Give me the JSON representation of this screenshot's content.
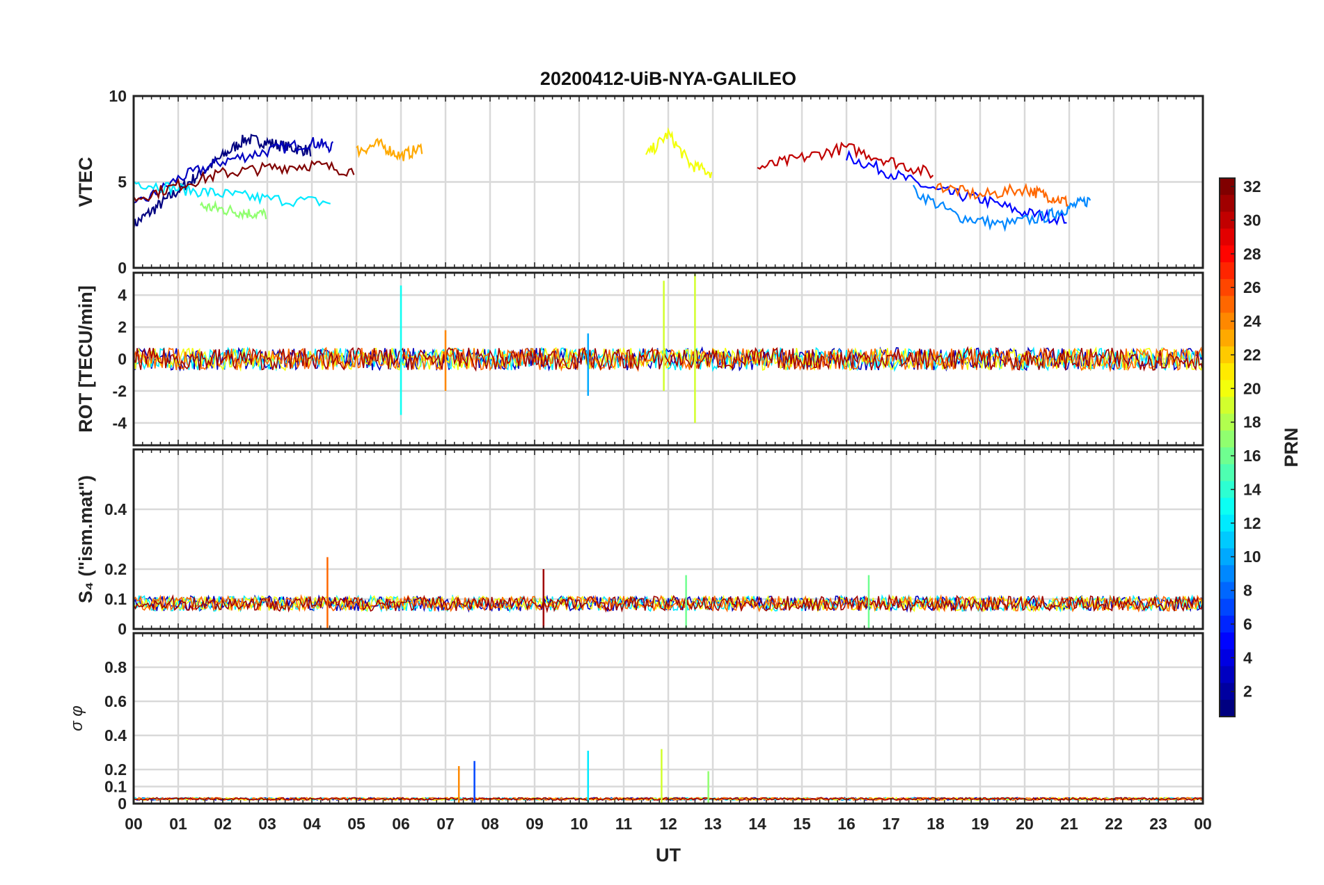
{
  "figure": {
    "title": "20200412-UiB-NYA-GALILEO",
    "xlabel": "UT",
    "x_ticks": [
      "00",
      "01",
      "02",
      "03",
      "04",
      "05",
      "06",
      "07",
      "08",
      "09",
      "10",
      "11",
      "12",
      "13",
      "14",
      "15",
      "16",
      "17",
      "18",
      "19",
      "20",
      "21",
      "22",
      "23",
      "00"
    ]
  },
  "chart_data": [
    {
      "type": "line",
      "panel": "vtec",
      "ylabel": "VTEC",
      "ylim": [
        0,
        10
      ],
      "y_ticks": [
        "0",
        "5",
        "10"
      ],
      "grid": true,
      "series": [
        {
          "prn": 1,
          "x": [
            0,
            0.5,
            1,
            1.5,
            2,
            2.5,
            3,
            3.5,
            4
          ],
          "y": [
            2.5,
            3.5,
            4.5,
            5.5,
            6.5,
            7.5,
            7.3,
            7.0,
            6.8
          ]
        },
        {
          "prn": 3,
          "x": [
            0,
            1,
            2,
            3,
            4,
            4.5
          ],
          "y": [
            3.5,
            5.2,
            6.2,
            6.8,
            7.3,
            7.0
          ]
        },
        {
          "prn": 5,
          "x": [
            16,
            17,
            18,
            19,
            20,
            21
          ],
          "y": [
            6.5,
            5.5,
            4.5,
            4.0,
            3.2,
            2.8
          ]
        },
        {
          "prn": 9,
          "x": [
            17.5,
            18.5,
            19.5,
            20.5,
            21,
            21.5
          ],
          "y": [
            4.5,
            3.0,
            2.5,
            3.0,
            3.5,
            4.0
          ]
        },
        {
          "prn": 12,
          "x": [
            0,
            1,
            2,
            3,
            4.5
          ],
          "y": [
            5.0,
            4.6,
            4.3,
            4.0,
            3.8
          ]
        },
        {
          "prn": 17,
          "x": [
            1.5,
            2,
            2.5,
            3
          ],
          "y": [
            3.6,
            3.4,
            3.2,
            3.1
          ]
        },
        {
          "prn": 20,
          "x": [
            11.5,
            12,
            12.5,
            13
          ],
          "y": [
            6.5,
            7.8,
            6.0,
            5.5
          ]
        },
        {
          "prn": 23,
          "x": [
            5,
            5.5,
            6,
            6.5
          ],
          "y": [
            6.8,
            7.2,
            6.5,
            7.0
          ]
        },
        {
          "prn": 25,
          "x": [
            18,
            19,
            20,
            20.5,
            21
          ],
          "y": [
            4.8,
            4.2,
            4.6,
            4.2,
            3.8
          ]
        },
        {
          "prn": 30,
          "x": [
            14,
            15,
            16,
            17,
            18
          ],
          "y": [
            5.8,
            6.4,
            7.0,
            6.2,
            5.4
          ]
        },
        {
          "prn": 32,
          "x": [
            0,
            1,
            2,
            3,
            4,
            5
          ],
          "y": [
            4.0,
            4.8,
            5.5,
            5.8,
            6.0,
            5.6
          ]
        }
      ]
    },
    {
      "type": "line",
      "panel": "rot",
      "ylabel": "ROT [TECU/min]",
      "ylim": [
        -5.4,
        5.4
      ],
      "y_ticks": [
        "-4",
        "-2",
        "0",
        "2",
        "4"
      ],
      "grid": true,
      "spikes": [
        {
          "prn": 13,
          "x": 6.0,
          "min": -3.5,
          "max": 4.6
        },
        {
          "prn": 19,
          "x": 11.9,
          "min": -2.0,
          "max": 4.9
        },
        {
          "prn": 19,
          "x": 12.6,
          "min": -4.0,
          "max": 5.4
        },
        {
          "prn": 24,
          "x": 7.0,
          "min": -2.0,
          "max": 1.8
        },
        {
          "prn": 10,
          "x": 10.2,
          "min": -2.3,
          "max": 1.6
        }
      ]
    },
    {
      "type": "line",
      "panel": "s4",
      "ylabel": "S₄ (\"ism.mat\")",
      "ylim": [
        0,
        0.6
      ],
      "y_ticks": [
        "0",
        "0.1",
        "0.2",
        "0.4"
      ],
      "grid": true,
      "spikes": [
        {
          "prn": 25,
          "x": 4.35,
          "max": 0.24
        },
        {
          "prn": 31,
          "x": 9.2,
          "max": 0.2
        },
        {
          "prn": 16,
          "x": 12.4,
          "max": 0.18
        },
        {
          "prn": 16,
          "x": 16.5,
          "max": 0.18
        }
      ]
    },
    {
      "type": "line",
      "panel": "sigma_phi",
      "ylabel": "σ φ",
      "ylim": [
        0,
        1.0
      ],
      "y_ticks": [
        "0",
        "0.1",
        "0.2",
        "0.4",
        "0.6",
        "0.8"
      ],
      "grid": true,
      "spikes": [
        {
          "prn": 24,
          "x": 7.3,
          "max": 0.22
        },
        {
          "prn": 7,
          "x": 7.65,
          "max": 0.25
        },
        {
          "prn": 12,
          "x": 10.2,
          "max": 0.31
        },
        {
          "prn": 19,
          "x": 11.85,
          "max": 0.32
        },
        {
          "prn": 17,
          "x": 12.9,
          "max": 0.19
        }
      ]
    }
  ],
  "colorbar": {
    "label": "PRN",
    "min": 1,
    "max": 32,
    "ticks": [
      "2",
      "4",
      "6",
      "8",
      "10",
      "12",
      "14",
      "16",
      "18",
      "20",
      "22",
      "24",
      "26",
      "28",
      "30",
      "32"
    ],
    "colormap": "jet"
  }
}
